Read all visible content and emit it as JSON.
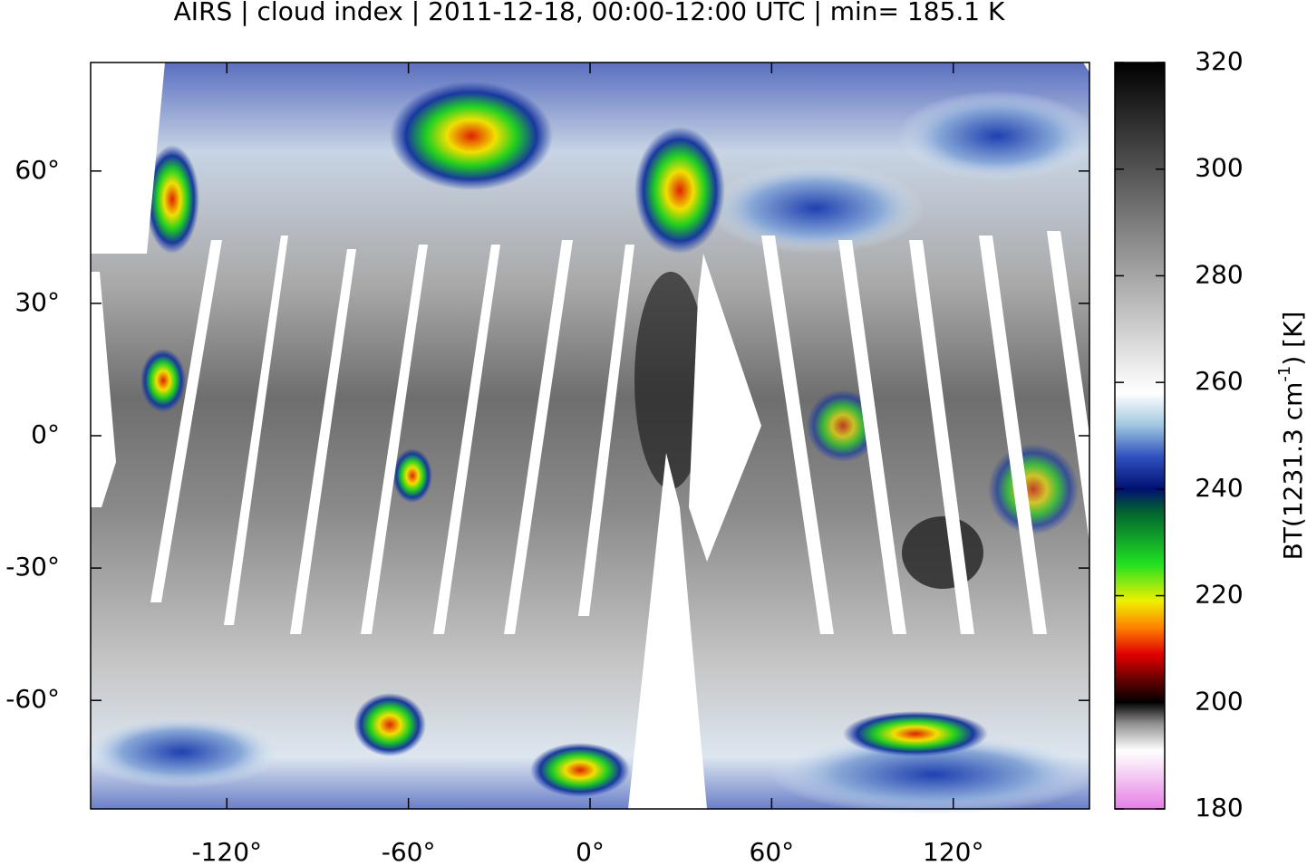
{
  "title": "AIRS | cloud index | 2011-12-18, 00:00-12:00 UTC | min= 185.1 K",
  "map": {
    "xlim": [
      -165,
      165
    ],
    "ylim": [
      -84.6,
      84.6
    ],
    "xticks": [
      {
        "value": -120,
        "label": "-120°"
      },
      {
        "value": -60,
        "label": "-60°"
      },
      {
        "value": 0,
        "label": "0°"
      },
      {
        "value": 60,
        "label": "60°"
      },
      {
        "value": 120,
        "label": "120°"
      }
    ],
    "yticks": [
      {
        "value": 60,
        "label": "60°"
      },
      {
        "value": 30,
        "label": "30°"
      },
      {
        "value": 0,
        "label": "0°"
      },
      {
        "value": -30,
        "label": "-30°"
      },
      {
        "value": -60,
        "label": "-60°"
      }
    ]
  },
  "colorbar": {
    "lim": [
      180,
      320
    ],
    "ticks": [
      180,
      200,
      220,
      240,
      260,
      280,
      300,
      320
    ],
    "label": [
      "BT(1231.3 cm",
      "-1",
      ") [K]"
    ],
    "colormap": [
      {
        "value": 180,
        "color": "#e67ee6"
      },
      {
        "value": 188,
        "color": "#f8e0f8"
      },
      {
        "value": 191,
        "color": "#ffffff"
      },
      {
        "value": 196,
        "color": "#909090"
      },
      {
        "value": 200,
        "color": "#000000"
      },
      {
        "value": 204,
        "color": "#600000"
      },
      {
        "value": 209,
        "color": "#e00000"
      },
      {
        "value": 214,
        "color": "#ff8000"
      },
      {
        "value": 219,
        "color": "#f0f000"
      },
      {
        "value": 226,
        "color": "#20e020"
      },
      {
        "value": 236,
        "color": "#006030"
      },
      {
        "value": 240,
        "color": "#001070"
      },
      {
        "value": 246,
        "color": "#3050c0"
      },
      {
        "value": 252,
        "color": "#a0c8e0"
      },
      {
        "value": 258,
        "color": "#ffffff"
      },
      {
        "value": 262,
        "color": "#f0f0f0"
      },
      {
        "value": 320,
        "color": "#000000"
      }
    ]
  }
}
